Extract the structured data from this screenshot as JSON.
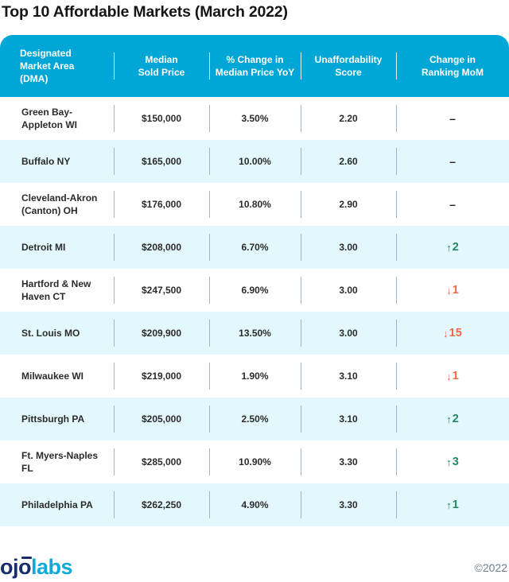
{
  "title": "Top 10 Affordable Markets (March 2022)",
  "colors": {
    "header_bg": "#00a6d6",
    "row_alt_bg": "#e3f8fd",
    "up": "#1e8a60",
    "down": "#f06744",
    "logo_dark": "#1a2d6b",
    "logo_light": "#12a9d8"
  },
  "table": {
    "columns": [
      "Designated Market Area (DMA)",
      "Median Sold Price",
      "% Change in Median Price YoY",
      "Unaffordability Score",
      "Change in Ranking MoM"
    ],
    "column_lines": [
      [
        "Designated",
        "Market Area",
        "(DMA)"
      ],
      [
        "Median",
        "Sold Price"
      ],
      [
        "% Change in",
        "Median Price YoY"
      ],
      [
        "Unaffordability",
        "Score"
      ],
      [
        "Change in",
        "Ranking MoM"
      ]
    ],
    "rows": [
      {
        "dma": "Green Bay-Appleton WI",
        "dma_lines": [
          "Green Bay-",
          "Appleton WI"
        ],
        "price": "$150,000",
        "yoy": "3.50%",
        "score": "2.20",
        "change": "–",
        "direction": "none",
        "arrow": ""
      },
      {
        "dma": "Buffalo NY",
        "dma_lines": [
          "Buffalo NY"
        ],
        "price": "$165,000",
        "yoy": "10.00%",
        "score": "2.60",
        "change": "–",
        "direction": "none",
        "arrow": ""
      },
      {
        "dma": "Cleveland-Akron (Canton) OH",
        "dma_lines": [
          "Cleveland-Akron",
          "(Canton) OH"
        ],
        "price": "$176,000",
        "yoy": "10.80%",
        "score": "2.90",
        "change": "–",
        "direction": "none",
        "arrow": ""
      },
      {
        "dma": "Detroit MI",
        "dma_lines": [
          "Detroit MI"
        ],
        "price": "$208,000",
        "yoy": "6.70%",
        "score": "3.00",
        "change": "2",
        "direction": "up",
        "arrow": "🡑"
      },
      {
        "dma": "Hartford & New Haven CT",
        "dma_lines": [
          "Hartford & New",
          "Haven CT"
        ],
        "price": "$247,500",
        "yoy": "6.90%",
        "score": "3.00",
        "change": "1",
        "direction": "down",
        "arrow": "🡓"
      },
      {
        "dma": "St. Louis MO",
        "dma_lines": [
          "St. Louis MO"
        ],
        "price": "$209,900",
        "yoy": "13.50%",
        "score": "3.00",
        "change": "15",
        "direction": "down",
        "arrow": "🡓"
      },
      {
        "dma": "Milwaukee WI",
        "dma_lines": [
          "Milwaukee WI"
        ],
        "price": "$219,000",
        "yoy": "1.90%",
        "score": "3.10",
        "change": "1",
        "direction": "down",
        "arrow": "🡓"
      },
      {
        "dma": "Pittsburgh PA",
        "dma_lines": [
          "Pittsburgh PA"
        ],
        "price": "$205,000",
        "yoy": "2.50%",
        "score": "3.10",
        "change": "2",
        "direction": "up",
        "arrow": "🡑"
      },
      {
        "dma": "Ft. Myers-Naples FL",
        "dma_lines": [
          "Ft. Myers-Naples",
          "FL"
        ],
        "price": "$285,000",
        "yoy": "10.90%",
        "score": "3.30",
        "change": "3",
        "direction": "up",
        "arrow": "🡑"
      },
      {
        "dma": "Philadelphia PA",
        "dma_lines": [
          "Philadelphia PA"
        ],
        "price": "$262,250",
        "yoy": "4.90%",
        "score": "3.30",
        "change": "1",
        "direction": "up",
        "arrow": "🡑"
      }
    ]
  },
  "footer": {
    "logo_part1": "ojo",
    "logo_part2": "labs",
    "copyright": "©2022"
  }
}
